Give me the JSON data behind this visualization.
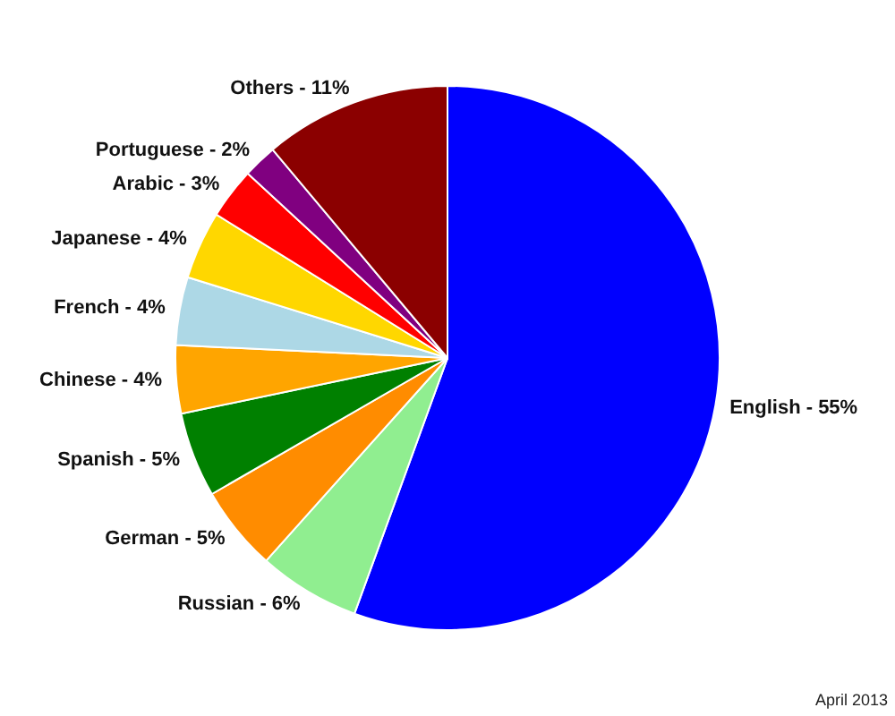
{
  "chart_data": {
    "type": "pie",
    "categories": [
      "English  - 55%",
      "Russian  - 6%",
      "German  - 5%",
      "Spanish  - 5%",
      "Chinese  - 4%",
      "French  - 4%",
      "Japanese  - 4%",
      "Arabic - 3%",
      "Portuguese - 2%",
      "Others - 11%"
    ],
    "values": [
      55,
      6,
      5,
      5,
      4,
      4,
      4,
      3,
      2,
      11
    ],
    "colors": [
      "#0000ff",
      "#90ee90",
      "#ff8c00",
      "#008000",
      "#ffa500",
      "#add8e6",
      "#ffd700",
      "#ff0000",
      "#800080",
      "#8b0000"
    ],
    "annotations": [
      "April 2013"
    ]
  }
}
